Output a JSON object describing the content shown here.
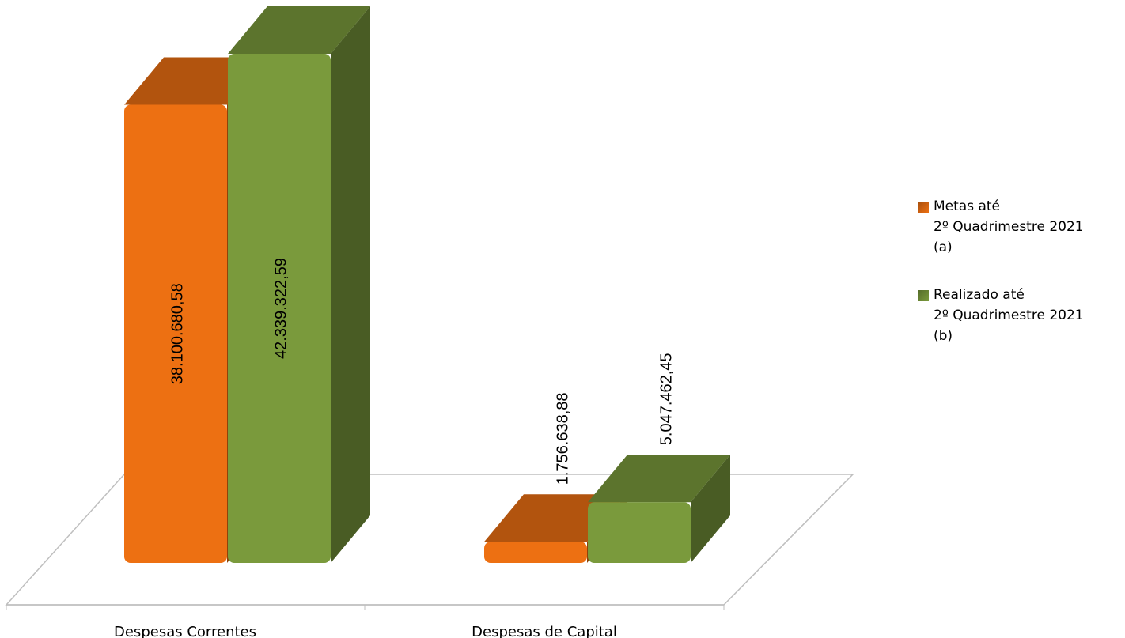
{
  "chart_data": {
    "type": "bar3d",
    "categories": [
      "Despesas Correntes",
      "Despesas de Capital"
    ],
    "series": [
      {
        "name": "Metas até\n2º Quadrimestre 2021\n(a)",
        "color": "#ed7012",
        "values": [
          38100680.58,
          1756638.88
        ],
        "value_labels": [
          "38.100.680,58",
          "1.756.638,88"
        ]
      },
      {
        "name": "Realizado até\n2º Quadrimestre 2021\n(b)",
        "color": "#7a9a3c",
        "values": [
          42339322.59,
          5047462.45
        ],
        "value_labels": [
          "42.339.322,59",
          "5.047.462,45"
        ]
      }
    ],
    "legend": "right"
  }
}
